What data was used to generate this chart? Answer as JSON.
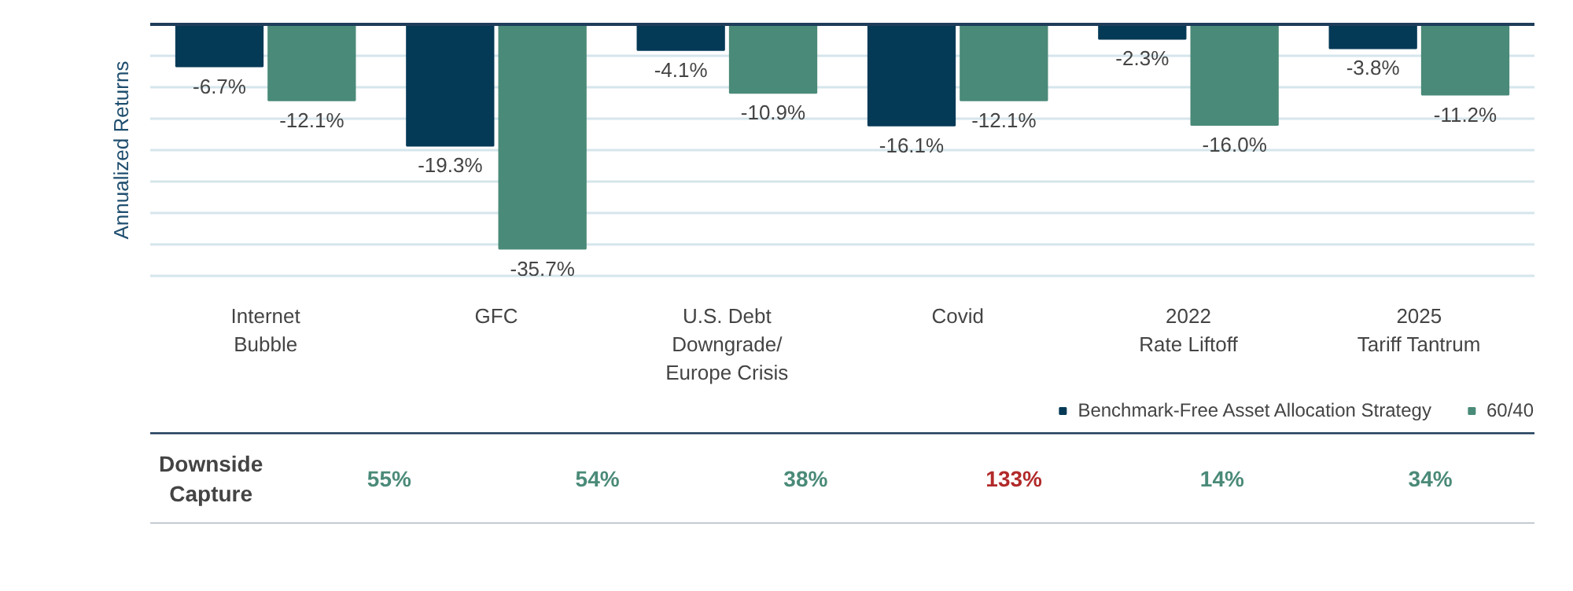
{
  "chart_data": [
    {
      "type": "bar",
      "ylabel": "Annualized Returns",
      "categories": [
        "Internet\nBubble",
        "GFC",
        "U.S. Debt\nDowngrade/\nEurope Crisis",
        "Covid",
        "2022\nRate Liftoff",
        "2025\nTariff Tantrum"
      ],
      "series": [
        {
          "name": "Benchmark-Free Asset Allocation Strategy",
          "color": "#053a57",
          "values": [
            -6.7,
            -19.3,
            -4.1,
            -16.1,
            -2.3,
            -3.8
          ],
          "value_labels": [
            "-6.7%",
            "-19.3%",
            "-4.1%",
            "-16.1%",
            "-2.3%",
            "-3.8%"
          ]
        },
        {
          "name": "60/40",
          "color": "#4a8a78",
          "values": [
            -12.1,
            -35.7,
            -10.9,
            -12.1,
            -16.0,
            -11.2
          ],
          "value_labels": [
            "-12.1%",
            "-35.7%",
            "-10.9%",
            "-12.1%",
            "-16.0%",
            "-11.2%"
          ]
        }
      ],
      "ylim": [
        -40,
        0
      ],
      "grid": "y",
      "tick_labels": "x",
      "legend": "bottom right"
    },
    {
      "type": "other",
      "title": "Downside Capture",
      "value_labels": [
        "55%",
        "54%",
        "38%",
        "133%",
        "14%",
        "34%"
      ],
      "colors": [
        "#4a8a78",
        "#4a8a78",
        "#4a8a78",
        "#b22a2a",
        "#4a8a78",
        "#4a8a78"
      ]
    }
  ]
}
